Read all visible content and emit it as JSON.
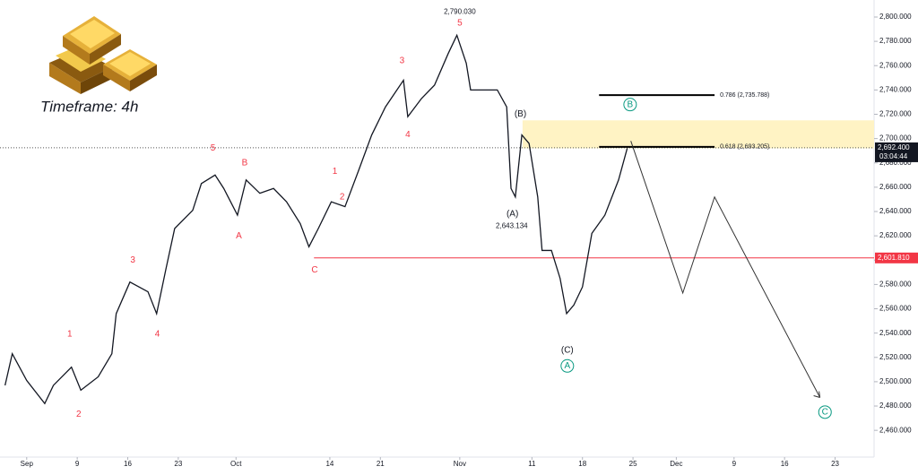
{
  "chart_data": {
    "type": "line",
    "timeframe": "Timeframe: 4h",
    "color": "#131722",
    "x": [
      -3,
      -2,
      0,
      2.5,
      3.7,
      6.2,
      7.5,
      9.9,
      11.8,
      12.4,
      14.3,
      16.8,
      18,
      19.3,
      20.5,
      23,
      24.2,
      26.1,
      27.3,
      29.2,
      30.4,
      32.3,
      34.2,
      36,
      37.9,
      39.1,
      40.4,
      42.2,
      44.1,
      46,
      47.8,
      49.7,
      52.2,
      52.8,
      54.7,
      56.5,
      58.4,
      59.6,
      60.9,
      61.5,
      63.4,
      65.2,
      66.5,
      67.1,
      67.7,
      68.6,
      69.6,
      70.8,
      71.4,
      72.7,
      73.9,
      74.8,
      75.8,
      77,
      78.3,
      80.1,
      82,
      83.2
    ],
    "values": [
      2497,
      2523,
      2501,
      2482,
      2497,
      2512,
      2493,
      2504,
      2523,
      2556,
      2582,
      2574,
      2556,
      2593,
      2626,
      2641,
      2663,
      2670,
      2659,
      2637,
      2666,
      2655,
      2659,
      2648,
      2630,
      2611,
      2626,
      2648,
      2644,
      2674,
      2703,
      2726,
      2748,
      2718,
      2733,
      2744,
      2770,
      2785,
      2762,
      2740,
      2740,
      2740,
      2726,
      2659,
      2652,
      2703,
      2696,
      2652,
      2608,
      2608,
      2585,
      2556,
      2563,
      2578,
      2622,
      2637,
      2666,
      2692
    ],
    "projection": {
      "x": [
        83.7,
        90.9,
        95.3,
        109.9
      ],
      "values": [
        2698,
        2573,
        2652,
        2487
      ]
    },
    "xlim": [
      -3.7,
      117.4
    ],
    "xticks": [
      {
        "value": 0,
        "label": "Sep"
      },
      {
        "value": 7,
        "label": "9"
      },
      {
        "value": 14,
        "label": "16"
      },
      {
        "value": 21,
        "label": "23"
      },
      {
        "value": 29,
        "label": "Oct"
      },
      {
        "value": 42,
        "label": "14"
      },
      {
        "value": 49,
        "label": "21"
      },
      {
        "value": 60,
        "label": "Nov"
      },
      {
        "value": 70,
        "label": "11"
      },
      {
        "value": 77,
        "label": "18"
      },
      {
        "value": 84,
        "label": "25"
      },
      {
        "value": 90,
        "label": "Dec"
      },
      {
        "value": 98,
        "label": "9"
      },
      {
        "value": 105,
        "label": "16"
      },
      {
        "value": 112,
        "label": "23"
      }
    ],
    "ylim": [
      2438,
      2814
    ],
    "yticks": [
      {
        "value": 2460,
        "label": "2,460.000"
      },
      {
        "value": 2480,
        "label": "2,480.000"
      },
      {
        "value": 2500,
        "label": "2,500.000"
      },
      {
        "value": 2520,
        "label": "2,520.000"
      },
      {
        "value": 2540,
        "label": "2,540.000"
      },
      {
        "value": 2560,
        "label": "2,560.000"
      },
      {
        "value": 2580,
        "label": "2,580.000"
      },
      {
        "value": 2600,
        "label": "2,600.000"
      },
      {
        "value": 2620,
        "label": "2,620.000"
      },
      {
        "value": 2640,
        "label": "2,640.000"
      },
      {
        "value": 2660,
        "label": "2,660.000"
      },
      {
        "value": 2680,
        "label": "2,680.000"
      },
      {
        "value": 2700,
        "label": "2,700.000"
      },
      {
        "value": 2720,
        "label": "2,720.000"
      },
      {
        "value": 2740,
        "label": "2,740.000"
      },
      {
        "value": 2760,
        "label": "2,760.000"
      },
      {
        "value": 2780,
        "label": "2,780.000"
      },
      {
        "value": 2800,
        "label": "2,800.000"
      }
    ],
    "grid": false,
    "zone": {
      "x": 68.7,
      "ylim": [
        2692,
        2715
      ],
      "color": "#fff3c4"
    },
    "fib_levels": [
      {
        "value": 2735.788,
        "label": "0.786 (2,735.788)",
        "x": [
          79.3,
          95.3
        ]
      },
      {
        "value": 2693.205,
        "label": "0.618 (2,693.205)",
        "x": [
          79.3,
          95.3
        ]
      }
    ],
    "support": {
      "value": 2601.81,
      "label": "2,601.810",
      "x": 39.8,
      "color": "#f23645"
    },
    "last_price": {
      "value": 2692.4,
      "label": "2,692.400",
      "countdown": "03:04:44"
    },
    "annotations": [
      {
        "text": "1",
        "x": 5.96,
        "y": 2539,
        "style": "red"
      },
      {
        "text": "2",
        "x": 7.2,
        "y": 2473,
        "style": "red"
      },
      {
        "text": "3",
        "x": 14.7,
        "y": 2600,
        "style": "red"
      },
      {
        "text": "4",
        "x": 18.1,
        "y": 2539,
        "style": "red"
      },
      {
        "text": "5",
        "x": 25.8,
        "y": 2692,
        "style": "red"
      },
      {
        "text": "A",
        "x": 29.4,
        "y": 2620,
        "style": "red"
      },
      {
        "text": "B",
        "x": 30.2,
        "y": 2680,
        "style": "red"
      },
      {
        "text": "C",
        "x": 39.9,
        "y": 2592,
        "style": "red"
      },
      {
        "text": "1",
        "x": 42.7,
        "y": 2673,
        "style": "red"
      },
      {
        "text": "2",
        "x": 43.7,
        "y": 2652,
        "style": "red"
      },
      {
        "text": "3",
        "x": 52,
        "y": 2764,
        "style": "red"
      },
      {
        "text": "4",
        "x": 52.8,
        "y": 2703,
        "style": "red"
      },
      {
        "text": "5",
        "x": 60,
        "y": 2795,
        "style": "red"
      },
      {
        "text": "2,790.030",
        "x": 60,
        "y": 2804,
        "style": "note"
      },
      {
        "text": "(B)",
        "x": 68.4,
        "y": 2720,
        "style": "black"
      },
      {
        "text": "(A)",
        "x": 67.3,
        "y": 2638,
        "style": "black"
      },
      {
        "text": "2,643.134",
        "x": 67.2,
        "y": 2628,
        "style": "note"
      },
      {
        "text": "(C)",
        "x": 74.9,
        "y": 2526,
        "style": "black"
      },
      {
        "text": "A",
        "x": 74.9,
        "y": 2513,
        "style": "circle"
      },
      {
        "text": "B",
        "x": 83.6,
        "y": 2728,
        "style": "circle"
      },
      {
        "text": "C",
        "x": 110.6,
        "y": 2475,
        "style": "circle"
      }
    ]
  }
}
